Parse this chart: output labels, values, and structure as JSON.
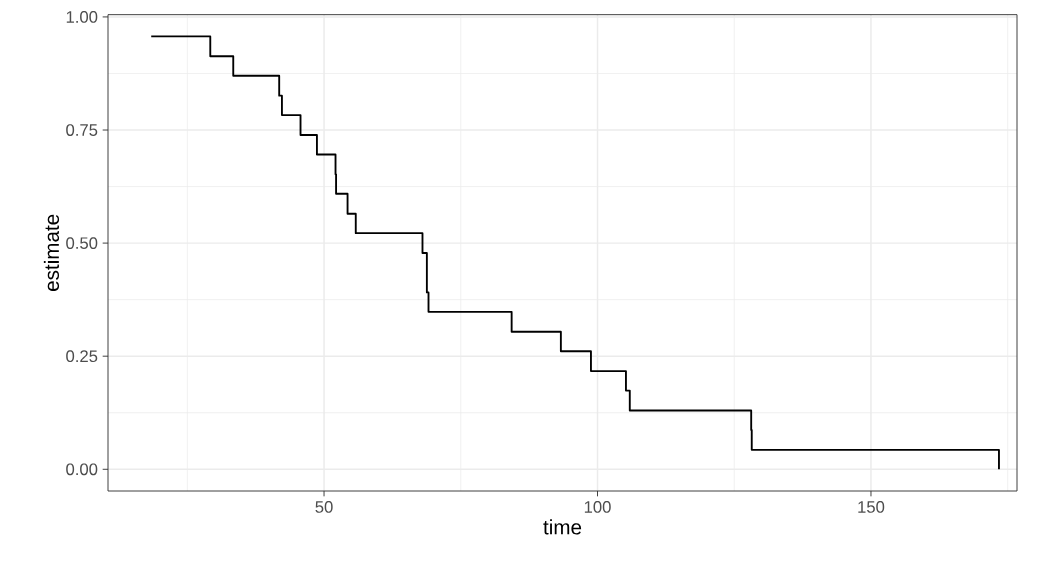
{
  "chart_data": {
    "type": "step",
    "xlabel": "time",
    "ylabel": "estimate",
    "x": [
      18.4,
      29.2,
      33.4,
      41.8,
      42.3,
      45.7,
      48.7,
      52.1,
      52.2,
      54.3,
      55.8,
      68.0,
      68.8,
      69.1,
      84.3,
      93.3,
      98.8,
      105.2,
      105.9,
      128.1,
      128.2,
      173.4
    ],
    "values": [
      0.957,
      0.913,
      0.87,
      0.826,
      0.783,
      0.739,
      0.696,
      0.652,
      0.609,
      0.565,
      0.522,
      0.478,
      0.391,
      0.348,
      0.304,
      0.261,
      0.217,
      0.174,
      0.13,
      0.087,
      0.043,
      0.0
    ],
    "color": "#000000",
    "xlim": [
      10.5,
      176.7
    ],
    "ylim": [
      -0.048,
      1.005
    ],
    "xticks": [
      50,
      100,
      150
    ],
    "yticks": [
      {
        "value": 0,
        "label": "0.00"
      },
      {
        "value": 0.25,
        "label": "0.25"
      },
      {
        "value": 0.5,
        "label": "0.50"
      },
      {
        "value": 0.75,
        "label": "0.75"
      },
      {
        "value": 1,
        "label": "1.00"
      }
    ],
    "grid": true,
    "marker": "none",
    "line_style": "solid"
  }
}
